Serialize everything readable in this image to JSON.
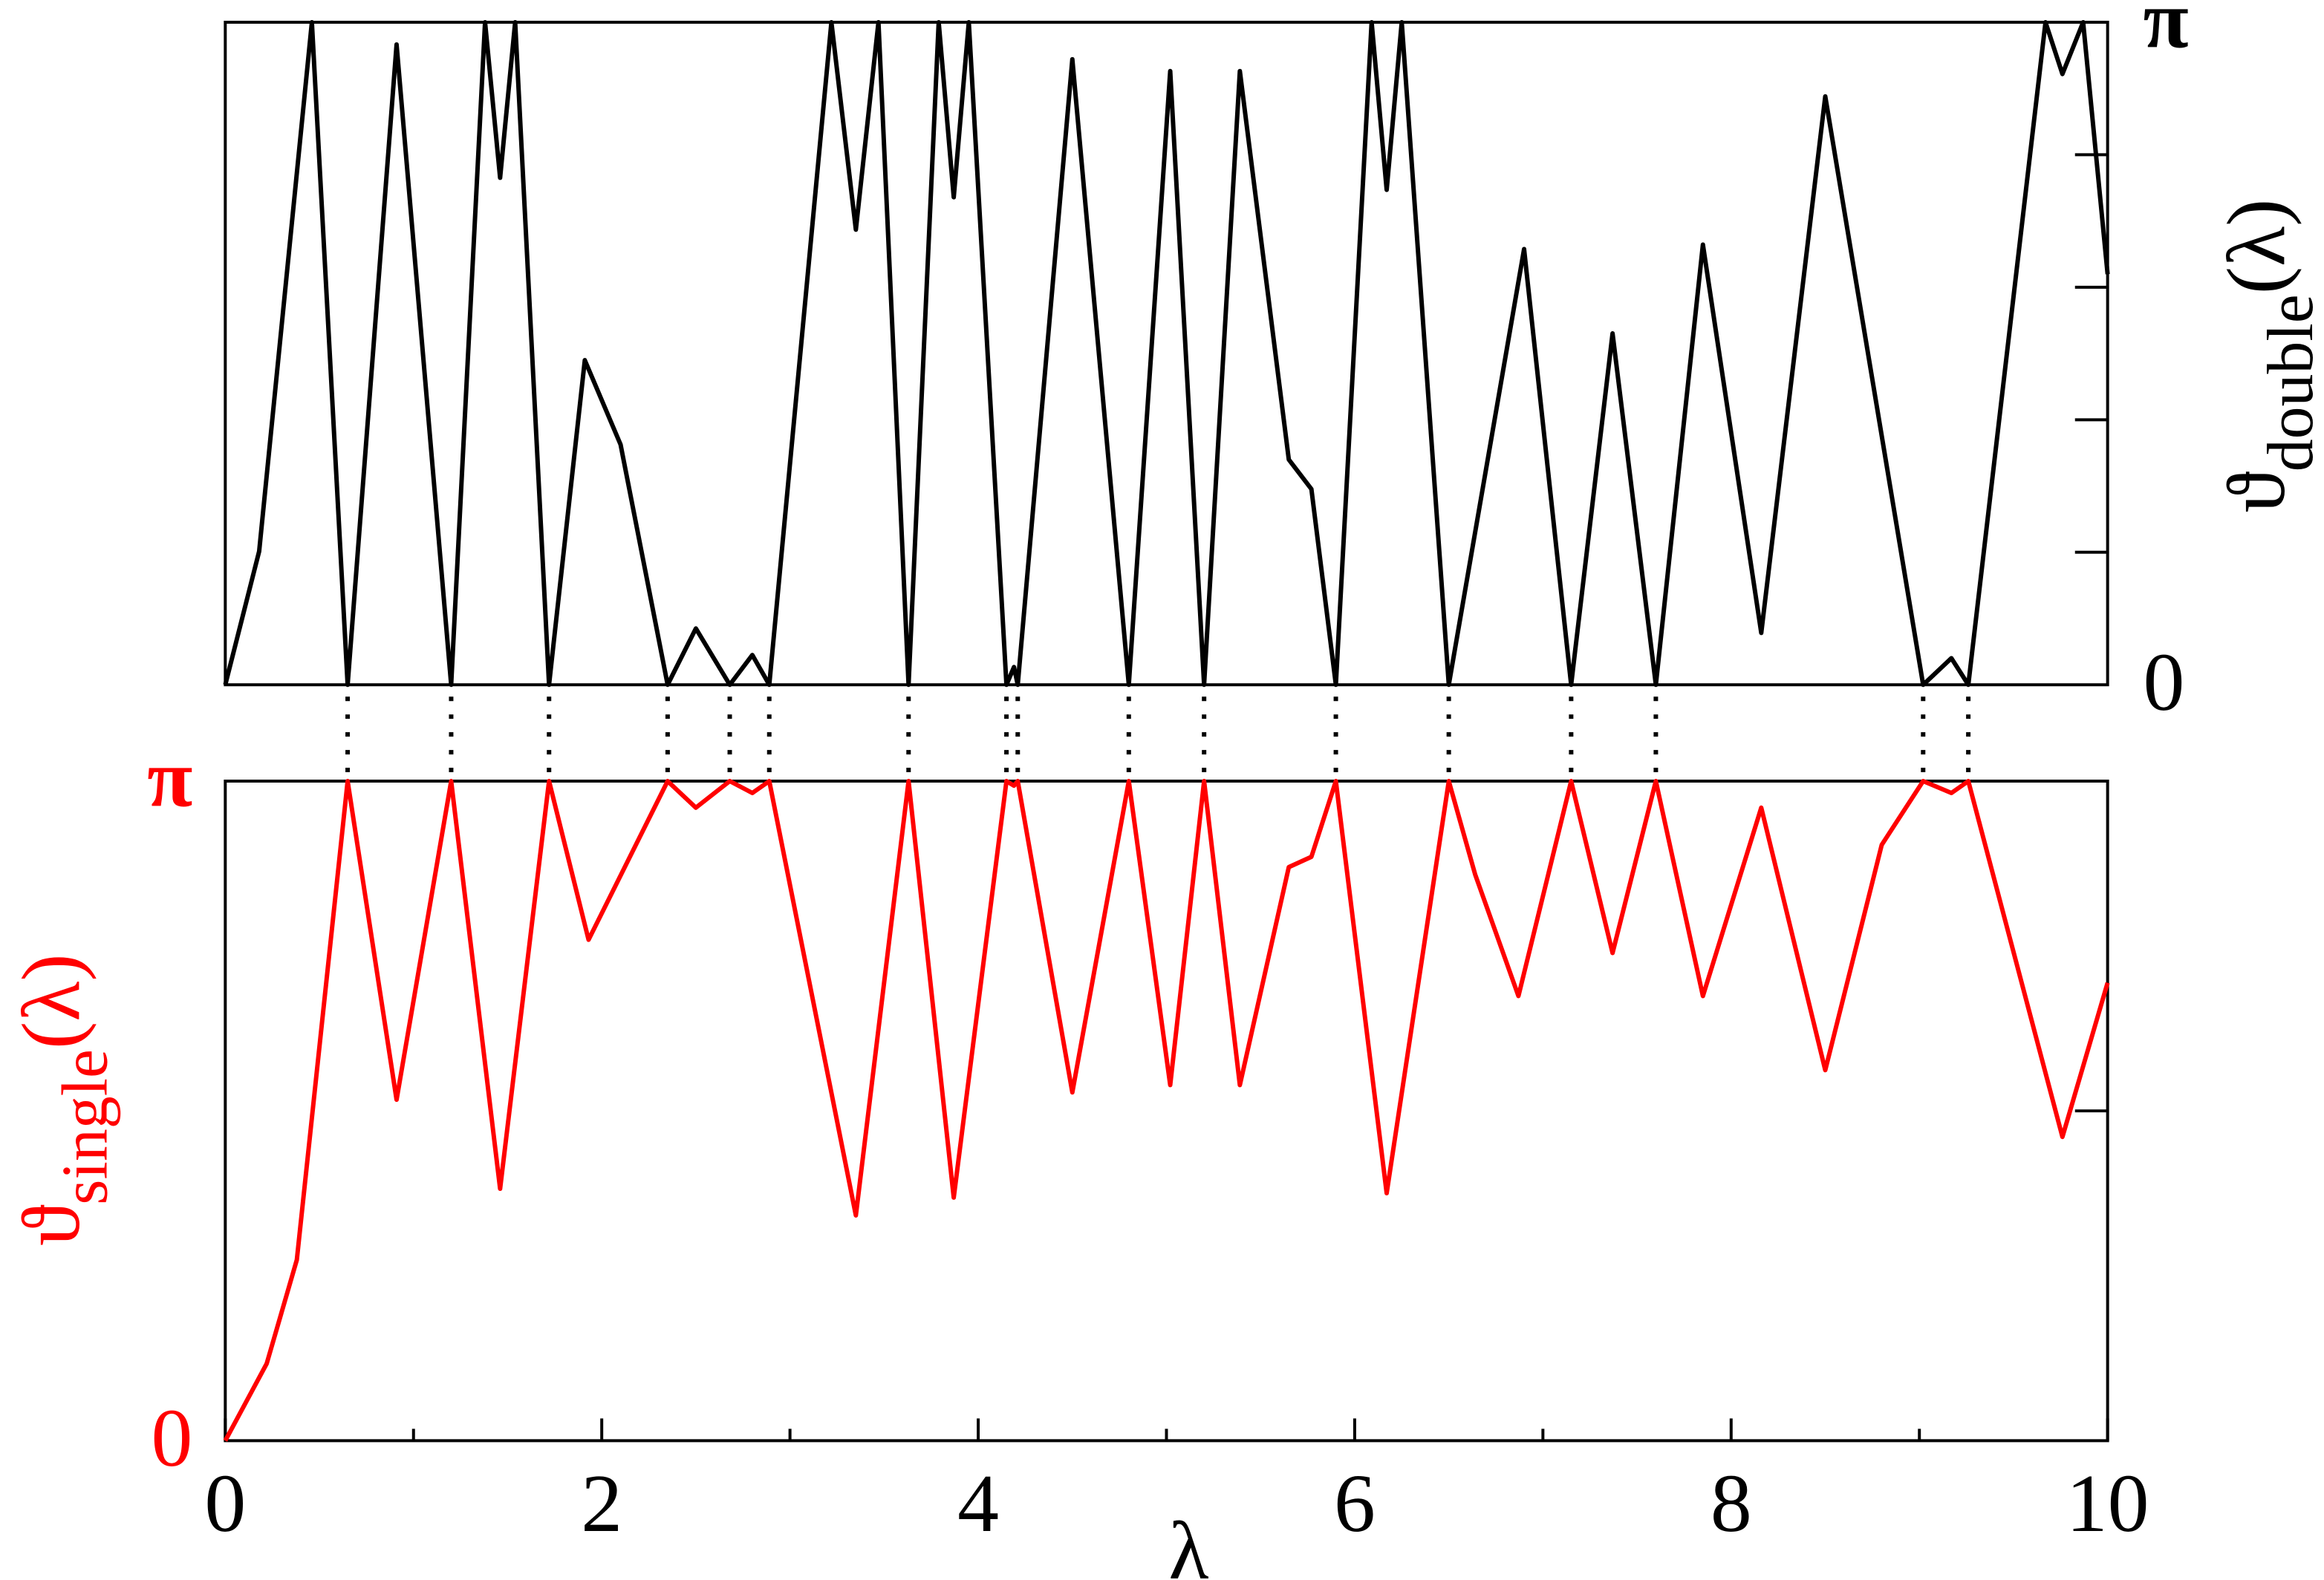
{
  "chart_data": [
    {
      "type": "line",
      "ylabel": "ϑ",
      "ylabel_sub": "double",
      "ylabel_tail": "(λ)",
      "label_side": "right",
      "color": "#000000",
      "xlim": [
        0,
        10
      ],
      "ylim": [
        0,
        3.1416
      ],
      "yticks": [
        0,
        {
          "value": 3.1416,
          "label": "π"
        }
      ],
      "yminor": [
        0.6283,
        1.2566,
        1.885,
        2.5133
      ],
      "dotted_x": [
        0.65,
        1.2,
        1.72,
        2.35,
        2.68,
        2.89,
        3.63,
        4.15,
        4.21,
        4.8,
        5.2,
        5.9,
        6.5,
        7.15,
        7.6,
        9.02,
        9.26
      ],
      "series": [
        {
          "color": "#000000",
          "x": [
            0,
            0.18,
            0.46,
            0.65,
            0.91,
            1.2,
            1.38,
            1.46,
            1.54,
            1.72,
            1.91,
            2.1,
            2.35,
            2.5,
            2.68,
            2.8,
            2.89,
            3.22,
            3.35,
            3.47,
            3.63,
            3.79,
            3.87,
            3.95,
            4.15,
            4.19,
            4.21,
            4.5,
            4.8,
            5.02,
            5.2,
            5.39,
            5.65,
            5.77,
            5.9,
            6.09,
            6.17,
            6.25,
            6.5,
            6.9,
            7.15,
            7.37,
            7.6,
            7.85,
            8.16,
            8.5,
            9.02,
            9.17,
            9.26,
            9.67,
            9.76,
            9.87,
            10
          ],
          "values": [
            0,
            0.633,
            3.1416,
            0,
            3.036,
            0,
            3.1416,
            2.404,
            3.1416,
            0,
            1.539,
            1.139,
            0,
            0.267,
            0,
            0.141,
            0,
            3.1416,
            2.158,
            3.1416,
            0,
            3.1416,
            2.312,
            3.1416,
            0,
            0.084,
            0,
            2.966,
            0,
            2.91,
            0,
            2.91,
            1.068,
            0.928,
            0,
            3.1416,
            2.347,
            3.1416,
            0,
            2.066,
            0,
            1.666,
            0,
            2.087,
            0.246,
            2.79,
            0,
            0.126,
            0,
            3.1416,
            2.896,
            3.1416,
            1.947
          ]
        }
      ]
    },
    {
      "type": "line",
      "ylabel": "ϑ",
      "ylabel_sub": "single",
      "ylabel_tail": "(λ)",
      "label_side": "left",
      "color": "#ff0000",
      "xlabel": "λ",
      "xlim": [
        0,
        10
      ],
      "xticks": [
        0,
        2,
        4,
        6,
        8,
        10
      ],
      "xminor": [
        1,
        3,
        5,
        7,
        9
      ],
      "ylim": [
        0,
        3.1416
      ],
      "yticks": [
        0,
        {
          "value": 3.1416,
          "label": "π"
        }
      ],
      "yminor": [
        1.5708
      ],
      "series": [
        {
          "color": "#ff0000",
          "x": [
            0,
            0.22,
            0.38,
            0.65,
            0.91,
            1.2,
            1.46,
            1.72,
            1.93,
            2.35,
            2.5,
            2.68,
            2.8,
            2.89,
            3.35,
            3.63,
            3.87,
            4.15,
            4.19,
            4.21,
            4.5,
            4.8,
            5.02,
            5.2,
            5.39,
            5.65,
            5.77,
            5.9,
            6.17,
            6.5,
            6.64,
            6.87,
            7.15,
            7.37,
            7.6,
            7.85,
            8.16,
            8.5,
            8.8,
            9.02,
            9.17,
            9.26,
            9.76,
            10
          ],
          "values": [
            0,
            0.367,
            0.861,
            3.1416,
            1.624,
            3.1416,
            1.2,
            3.1416,
            2.386,
            3.1416,
            3.015,
            3.1416,
            3.085,
            3.1416,
            1.073,
            3.1416,
            1.158,
            3.1416,
            3.12,
            3.1416,
            1.659,
            3.1416,
            1.694,
            3.1416,
            1.694,
            2.732,
            2.781,
            3.1416,
            1.179,
            3.1416,
            2.697,
            2.118,
            3.1416,
            2.323,
            3.1416,
            2.118,
            3.015,
            1.765,
            2.838,
            3.1416,
            3.085,
            3.1416,
            1.447,
            2.181
          ]
        }
      ]
    }
  ]
}
